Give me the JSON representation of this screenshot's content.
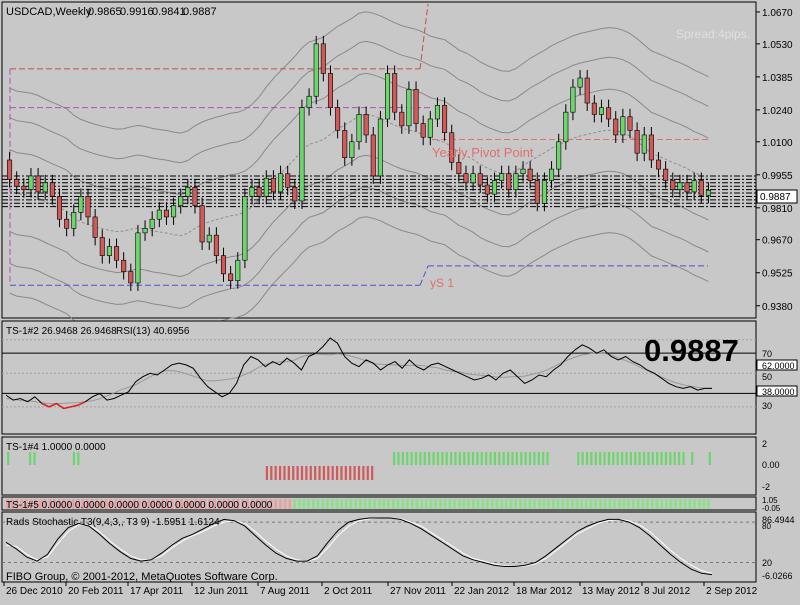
{
  "main": {
    "symbol_label": "USDCAD,Weekly",
    "ohlc": [
      "0.9865",
      "0.9916",
      "0.9841",
      "0.9887"
    ],
    "spread": "Spread:4pips.",
    "pivot_label": "Yearly Pivot Point",
    "ys1_label": "yS 1",
    "current_price": "0.9887",
    "price_axis": [
      "1.0670",
      "1.0530",
      "1.0385",
      "1.0240",
      "1.0100",
      "0.9955",
      "0.9810",
      "0.9670",
      "0.9525",
      "0.9380"
    ],
    "price_range": [
      0.9335,
      1.0705
    ],
    "weeks": [
      {
        "o": 1.002,
        "c": 0.9935
      },
      {
        "o": 0.9935,
        "c": 0.9905
      },
      {
        "o": 0.9905,
        "c": 0.989
      },
      {
        "o": 0.989,
        "c": 0.995
      },
      {
        "o": 0.995,
        "c": 0.988
      },
      {
        "o": 0.988,
        "c": 0.992
      },
      {
        "o": 0.992,
        "c": 0.986
      },
      {
        "o": 0.986,
        "c": 0.976
      },
      {
        "o": 0.976,
        "c": 0.972
      },
      {
        "o": 0.972,
        "c": 0.979
      },
      {
        "o": 0.979,
        "c": 0.986
      },
      {
        "o": 0.986,
        "c": 0.977
      },
      {
        "o": 0.977,
        "c": 0.968
      },
      {
        "o": 0.968,
        "c": 0.96
      },
      {
        "o": 0.96,
        "c": 0.964
      },
      {
        "o": 0.964,
        "c": 0.958
      },
      {
        "o": 0.958,
        "c": 0.953
      },
      {
        "o": 0.953,
        "c": 0.948
      },
      {
        "o": 0.948,
        "c": 0.97
      },
      {
        "o": 0.97,
        "c": 0.972
      },
      {
        "o": 0.972,
        "c": 0.976
      },
      {
        "o": 0.976,
        "c": 0.98
      },
      {
        "o": 0.98,
        "c": 0.977
      },
      {
        "o": 0.977,
        "c": 0.982
      },
      {
        "o": 0.982,
        "c": 0.986
      },
      {
        "o": 0.986,
        "c": 0.99
      },
      {
        "o": 0.99,
        "c": 0.982
      },
      {
        "o": 0.982,
        "c": 0.966
      },
      {
        "o": 0.966,
        "c": 0.969
      },
      {
        "o": 0.969,
        "c": 0.96
      },
      {
        "o": 0.96,
        "c": 0.952
      },
      {
        "o": 0.952,
        "c": 0.949
      },
      {
        "o": 0.949,
        "c": 0.958
      },
      {
        "o": 0.958,
        "c": 0.986
      },
      {
        "o": 0.986,
        "c": 0.99
      },
      {
        "o": 0.99,
        "c": 0.986
      },
      {
        "o": 0.986,
        "c": 0.994
      },
      {
        "o": 0.994,
        "c": 0.988
      },
      {
        "o": 0.988,
        "c": 0.996
      },
      {
        "o": 0.996,
        "c": 0.99
      },
      {
        "o": 0.99,
        "c": 0.984
      },
      {
        "o": 0.984,
        "c": 1.025
      },
      {
        "o": 1.025,
        "c": 1.03
      },
      {
        "o": 1.03,
        "c": 1.053
      },
      {
        "o": 1.053,
        "c": 1.04
      },
      {
        "o": 1.04,
        "c": 1.025
      },
      {
        "o": 1.025,
        "c": 1.015
      },
      {
        "o": 1.015,
        "c": 1.003
      },
      {
        "o": 1.003,
        "c": 1.01
      },
      {
        "o": 1.01,
        "c": 1.022
      },
      {
        "o": 1.022,
        "c": 1.013
      },
      {
        "o": 1.013,
        "c": 0.995
      },
      {
        "o": 0.995,
        "c": 1.02
      },
      {
        "o": 1.02,
        "c": 1.04
      },
      {
        "o": 1.04,
        "c": 1.023
      },
      {
        "o": 1.023,
        "c": 1.017
      },
      {
        "o": 1.017,
        "c": 1.033
      },
      {
        "o": 1.033,
        "c": 1.018
      },
      {
        "o": 1.018,
        "c": 1.012
      },
      {
        "o": 1.012,
        "c": 1.02
      },
      {
        "o": 1.02,
        "c": 1.026
      },
      {
        "o": 1.026,
        "c": 1.014
      },
      {
        "o": 1.014,
        "c": 1.001
      },
      {
        "o": 1.001,
        "c": 0.996
      },
      {
        "o": 0.996,
        "c": 0.992
      },
      {
        "o": 0.992,
        "c": 0.996
      },
      {
        "o": 0.996,
        "c": 0.991
      },
      {
        "o": 0.991,
        "c": 0.987
      },
      {
        "o": 0.987,
        "c": 0.993
      },
      {
        "o": 0.993,
        "c": 0.996
      },
      {
        "o": 0.996,
        "c": 0.989
      },
      {
        "o": 0.989,
        "c": 0.996
      },
      {
        "o": 0.996,
        "c": 0.998
      },
      {
        "o": 0.998,
        "c": 0.993
      },
      {
        "o": 0.993,
        "c": 0.983
      },
      {
        "o": 0.983,
        "c": 0.993
      },
      {
        "o": 0.993,
        "c": 0.998
      },
      {
        "o": 0.998,
        "c": 1.01
      },
      {
        "o": 1.01,
        "c": 1.023
      },
      {
        "o": 1.023,
        "c": 1.034
      },
      {
        "o": 1.034,
        "c": 1.038
      },
      {
        "o": 1.038,
        "c": 1.027
      },
      {
        "o": 1.027,
        "c": 1.022
      },
      {
        "o": 1.022,
        "c": 1.025
      },
      {
        "o": 1.025,
        "c": 1.02
      },
      {
        "o": 1.02,
        "c": 1.013
      },
      {
        "o": 1.013,
        "c": 1.021
      },
      {
        "o": 1.021,
        "c": 1.015
      },
      {
        "o": 1.015,
        "c": 1.005
      },
      {
        "o": 1.005,
        "c": 1.013
      },
      {
        "o": 1.013,
        "c": 1.002
      },
      {
        "o": 1.002,
        "c": 0.998
      },
      {
        "o": 0.998,
        "c": 0.993
      },
      {
        "o": 0.993,
        "c": 0.989
      },
      {
        "o": 0.989,
        "c": 0.992
      },
      {
        "o": 0.992,
        "c": 0.988
      },
      {
        "o": 0.988,
        "c": 0.993
      },
      {
        "o": 0.993,
        "c": 0.9865
      },
      {
        "o": 0.9865,
        "c": 0.9887
      }
    ]
  },
  "rsi": {
    "label": "TS-1#2 26.9468 26.9468",
    "rsi_label": "RSI(13) 40.6956",
    "levels": [
      "70",
      "62.0000",
      "50",
      "38.0000",
      "30"
    ],
    "values": [
      37,
      34,
      35,
      33,
      36,
      32,
      30,
      32,
      29,
      30,
      31,
      33,
      36,
      38,
      34,
      35,
      37,
      39,
      45,
      48,
      50,
      49,
      52,
      55,
      56,
      55,
      53,
      47,
      42,
      39,
      36,
      38,
      44,
      55,
      60,
      58,
      54,
      57,
      55,
      59,
      56,
      52,
      60,
      62,
      66,
      71,
      68,
      60,
      56,
      54,
      58,
      56,
      52,
      55,
      57,
      53,
      58,
      54,
      52,
      55,
      56,
      54,
      52,
      50,
      48,
      46,
      47,
      49,
      46,
      50,
      52,
      48,
      44,
      46,
      49,
      48,
      52,
      55,
      60,
      64,
      67,
      65,
      62,
      64,
      60,
      58,
      60,
      57,
      55,
      52,
      50,
      47,
      44,
      42,
      41,
      42,
      40,
      41,
      41
    ]
  },
  "ts4": {
    "label": "TS-1#4 1.0000 0.0000",
    "scale": [
      "2",
      "0.00",
      "-2"
    ],
    "bars": [
      1,
      0,
      0,
      0,
      0,
      1,
      1,
      0,
      0,
      0,
      0,
      0,
      0,
      0,
      0,
      1,
      1,
      0,
      0,
      0,
      0,
      0,
      0,
      0,
      0,
      0,
      0,
      0,
      0,
      0,
      0,
      0,
      0,
      0,
      0,
      0,
      0,
      0,
      0,
      0,
      0,
      0,
      0,
      0,
      0,
      0,
      0,
      0,
      0,
      0,
      0,
      0,
      0,
      0,
      0,
      0,
      0,
      0,
      0,
      -1,
      -1,
      -1,
      -1,
      -1,
      -1,
      -1,
      -1,
      -1,
      -1,
      -1,
      -1,
      -1,
      -1,
      -1,
      -1,
      -1,
      -1,
      -1,
      -1,
      -1,
      -1,
      -1,
      -1,
      -1,
      0,
      0,
      0,
      0,
      1,
      1,
      1,
      1,
      1,
      1,
      1,
      1,
      1,
      1,
      1,
      1,
      1,
      1,
      1,
      1,
      1,
      1,
      1,
      1,
      1,
      1,
      1,
      1,
      1,
      1,
      1,
      1,
      1,
      1,
      1,
      1,
      1,
      1,
      1,
      1,
      0,
      0,
      0,
      0,
      0,
      0,
      1,
      1,
      1,
      1,
      1,
      1,
      1,
      1,
      1,
      1,
      1,
      1,
      1,
      1,
      1,
      1,
      1,
      1,
      1,
      1,
      1,
      1,
      1,
      1,
      1,
      0,
      1,
      0,
      0,
      0,
      1
    ]
  },
  "ts5": {
    "label": "TS-1#5 0.0000 0.0000 0.0000 0.0000 0.0000 0.0000 0.0000",
    "scale": [
      "1.05",
      "-0.05"
    ]
  },
  "stoch": {
    "label": "Rads Stochastic T3(9,4,3,, T3 9) -1.5951 1.6124",
    "levels": [
      "86.4944",
      "80",
      "20",
      "-6.0266"
    ],
    "line1": [
      50,
      40,
      28,
      22,
      32,
      55,
      72,
      78,
      74,
      62,
      48,
      36,
      26,
      22,
      24,
      34,
      46,
      56,
      62,
      70,
      78,
      84,
      82,
      74,
      60,
      46,
      34,
      26,
      22,
      22,
      30,
      50,
      68,
      80,
      84,
      86,
      86,
      86,
      84,
      78,
      70,
      60,
      50,
      40,
      30,
      24,
      20,
      16,
      14,
      14,
      16,
      20,
      30,
      42,
      54,
      66,
      74,
      80,
      84,
      84,
      80,
      72,
      60,
      46,
      32,
      20,
      10,
      4,
      2
    ],
    "line2": [
      46,
      44,
      32,
      24,
      28,
      48,
      66,
      76,
      76,
      66,
      52,
      40,
      30,
      24,
      24,
      30,
      42,
      52,
      60,
      66,
      74,
      80,
      82,
      78,
      66,
      52,
      40,
      30,
      24,
      22,
      26,
      42,
      60,
      74,
      82,
      85,
      86,
      86,
      85,
      80,
      74,
      64,
      54,
      44,
      34,
      26,
      22,
      18,
      15,
      14,
      15,
      18,
      26,
      38,
      50,
      62,
      70,
      78,
      82,
      84,
      82,
      76,
      66,
      52,
      38,
      26,
      16,
      8,
      4
    ]
  },
  "footer": {
    "copyright": "FIBO Group, © 2001-2012, MetaQuotes Software Corp.",
    "time_axis": [
      "26 Dec 2010",
      "20 Feb 2011",
      "17 Apr 2011",
      "12 Jun 2011",
      "7 Aug 2011",
      "2 Oct 2011",
      "27 Nov 2011",
      "22 Jan 2012",
      "18 Mar 2012",
      "13 May 2012",
      "8 Jul 2012",
      "2 Sep 2012"
    ]
  },
  "colors": {
    "background": "#c8c8c8",
    "bull": "#6cd66c",
    "bear": "#d05a5a",
    "pivot": "#e07070",
    "ys1": "#5050d0",
    "price_box": "#ffffff"
  }
}
